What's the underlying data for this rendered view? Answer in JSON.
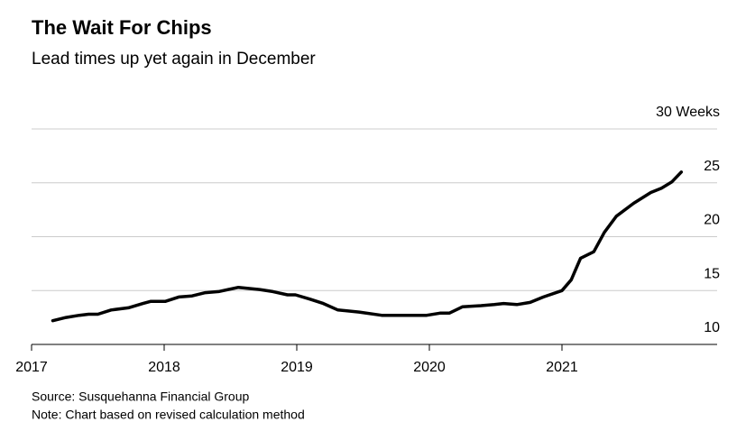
{
  "chart_data": {
    "type": "line",
    "title": "The Wait For Chips",
    "subtitle": "Lead times up yet again in December",
    "source": "Source: Susquehanna Financial Group",
    "note": "Note: Chart based on revised calculation method",
    "x": [
      2017.16,
      2017.26,
      2017.36,
      2017.43,
      2017.5,
      2017.6,
      2017.73,
      2017.84,
      2017.9,
      2018.01,
      2018.11,
      2018.21,
      2018.31,
      2018.41,
      2018.56,
      2018.72,
      2018.82,
      2018.93,
      2018.99,
      2019.1,
      2019.2,
      2019.31,
      2019.47,
      2019.64,
      2019.81,
      2019.98,
      2020.08,
      2020.15,
      2020.25,
      2020.39,
      2020.49,
      2020.56,
      2020.66,
      2020.76,
      2020.86,
      2021.0,
      2021.07,
      2021.14,
      2021.24,
      2021.32,
      2021.41,
      2021.54,
      2021.67,
      2021.75,
      2021.83,
      2021.9
    ],
    "series": [
      {
        "name": "Lead time",
        "color": "#000000",
        "values": [
          12.2,
          12.5,
          12.7,
          12.8,
          12.8,
          13.2,
          13.4,
          13.8,
          14.0,
          14.0,
          14.4,
          14.5,
          14.8,
          14.9,
          15.3,
          15.1,
          14.9,
          14.6,
          14.6,
          14.2,
          13.8,
          13.2,
          13.0,
          12.7,
          12.7,
          12.7,
          12.9,
          12.9,
          13.5,
          13.6,
          13.7,
          13.8,
          13.7,
          13.9,
          14.4,
          15.0,
          16.0,
          18.0,
          18.6,
          20.4,
          21.9,
          23.1,
          24.1,
          24.5,
          25.1,
          26.0
        ]
      }
    ],
    "xlim": [
      2017,
      2022.17
    ],
    "xticks": [
      2017,
      2018,
      2019,
      2020,
      2021
    ],
    "ylim": [
      10,
      30
    ],
    "yticks": [
      10,
      15,
      20,
      25,
      {
        "value": 30,
        "label": "30 Weeks"
      }
    ],
    "grid": true
  }
}
